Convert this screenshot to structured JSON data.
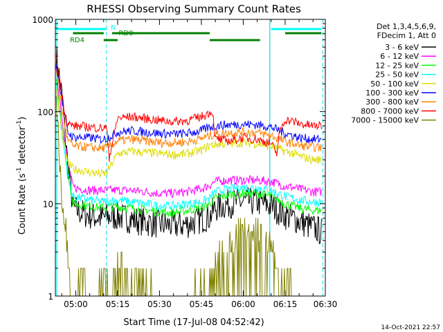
{
  "chart_data": {
    "type": "line",
    "title": "RHESSI Observing Summary Count Rates",
    "xlabel": "Start Time (17-Jul-08 04:52:42)",
    "ylabel_main": "Count Rate (s",
    "ylabel_sup1": "-1",
    "ylabel_mid": " detector",
    "ylabel_sup2": "-1",
    "ylabel_end": ")",
    "y_scale": "log",
    "ylim": [
      1,
      1000
    ],
    "xlim_minutes": [
      292.7,
      389.4
    ],
    "x_ticks": [
      {
        "label": "05:00",
        "minutes": 300
      },
      {
        "label": "05:15",
        "minutes": 315
      },
      {
        "label": "05:30",
        "minutes": 330
      },
      {
        "label": "05:45",
        "minutes": 345
      },
      {
        "label": "06:00",
        "minutes": 360
      },
      {
        "label": "06:15",
        "minutes": 375
      },
      {
        "label": "06:30",
        "minutes": 390
      }
    ],
    "y_ticks": [
      {
        "label": "1",
        "value": 1
      },
      {
        "label": "10",
        "value": 10
      },
      {
        "label": "100",
        "value": 100
      },
      {
        "label": "1000",
        "value": 1000
      }
    ],
    "legend": {
      "header1": "Det 1,3,4,5,6,9,",
      "header2": "FDecim 1, Att 0",
      "placement": "right"
    },
    "series": [
      {
        "name": "3 - 6 keV",
        "color": "#000000",
        "points": [
          [
            293,
            420
          ],
          [
            295,
            150
          ],
          [
            297,
            30
          ],
          [
            299,
            9
          ],
          [
            302,
            8
          ],
          [
            305,
            7.5
          ],
          [
            309,
            7
          ],
          [
            311,
            7.2
          ],
          [
            315,
            7.3
          ],
          [
            320,
            6.8
          ],
          [
            325,
            6.3
          ],
          [
            330,
            6
          ],
          [
            335,
            5.8
          ],
          [
            340,
            6
          ],
          [
            345,
            6.8
          ],
          [
            348,
            7.3
          ],
          [
            350,
            9
          ],
          [
            355,
            10
          ],
          [
            360,
            10.5
          ],
          [
            365,
            10.5
          ],
          [
            370,
            9.5
          ],
          [
            375,
            7.5
          ],
          [
            378,
            7
          ],
          [
            380,
            6.5
          ],
          [
            385,
            5.5
          ],
          [
            388,
            5
          ]
        ]
      },
      {
        "name": "6 - 12 keV",
        "color": "#ff00ff",
        "points": [
          [
            293,
            280
          ],
          [
            295,
            90
          ],
          [
            297,
            30
          ],
          [
            299,
            15
          ],
          [
            305,
            14
          ],
          [
            310,
            14
          ],
          [
            314,
            14
          ],
          [
            320,
            14
          ],
          [
            325,
            13.5
          ],
          [
            330,
            13
          ],
          [
            335,
            13
          ],
          [
            340,
            13.5
          ],
          [
            345,
            14.5
          ],
          [
            348,
            16
          ],
          [
            350,
            17.5
          ],
          [
            355,
            18
          ],
          [
            360,
            18
          ],
          [
            365,
            18
          ],
          [
            370,
            17.5
          ],
          [
            375,
            15.5
          ],
          [
            378,
            15
          ],
          [
            380,
            14.5
          ],
          [
            385,
            13.5
          ],
          [
            388,
            13.5
          ]
        ]
      },
      {
        "name": "12 - 25 keV",
        "color": "#00ff00",
        "points": [
          [
            293,
            230
          ],
          [
            295,
            70
          ],
          [
            297,
            25
          ],
          [
            299,
            10
          ],
          [
            305,
            9.5
          ],
          [
            309,
            9
          ],
          [
            311,
            9.2
          ],
          [
            315,
            9.3
          ],
          [
            320,
            9
          ],
          [
            325,
            8.5
          ],
          [
            330,
            8.2
          ],
          [
            335,
            8
          ],
          [
            340,
            8.5
          ],
          [
            345,
            9
          ],
          [
            348,
            10
          ],
          [
            350,
            11.5
          ],
          [
            355,
            12.5
          ],
          [
            360,
            13
          ],
          [
            365,
            13
          ],
          [
            370,
            12
          ],
          [
            375,
            10
          ],
          [
            378,
            9.5
          ],
          [
            380,
            9
          ],
          [
            385,
            8.5
          ],
          [
            388,
            8.5
          ]
        ]
      },
      {
        "name": "25 - 50 keV",
        "color": "#00ffff",
        "points": [
          [
            293,
            200
          ],
          [
            295,
            60
          ],
          [
            297,
            22
          ],
          [
            299,
            12
          ],
          [
            305,
            11
          ],
          [
            309,
            10.5
          ],
          [
            311,
            10.7
          ],
          [
            315,
            11
          ],
          [
            320,
            10.5
          ],
          [
            325,
            10
          ],
          [
            330,
            9.5
          ],
          [
            335,
            9.5
          ],
          [
            340,
            10
          ],
          [
            345,
            10.5
          ],
          [
            348,
            11.5
          ],
          [
            350,
            13.5
          ],
          [
            355,
            14.5
          ],
          [
            360,
            15
          ],
          [
            365,
            15
          ],
          [
            370,
            14
          ],
          [
            375,
            12
          ],
          [
            378,
            11.5
          ],
          [
            380,
            11
          ],
          [
            385,
            10.5
          ],
          [
            388,
            10.5
          ]
        ]
      },
      {
        "name": "50 - 100 keV",
        "color": "#dddd00",
        "points": [
          [
            293,
            180
          ],
          [
            295,
            60
          ],
          [
            297,
            28
          ],
          [
            299,
            24
          ],
          [
            305,
            22
          ],
          [
            309,
            21
          ],
          [
            311,
            21.5
          ],
          [
            315,
            35
          ],
          [
            320,
            37
          ],
          [
            325,
            36
          ],
          [
            330,
            35
          ],
          [
            335,
            34
          ],
          [
            340,
            35
          ],
          [
            345,
            38
          ],
          [
            348,
            43
          ],
          [
            350,
            44
          ],
          [
            355,
            45
          ],
          [
            360,
            46
          ],
          [
            365,
            45
          ],
          [
            370,
            42
          ],
          [
            375,
            37
          ],
          [
            378,
            35
          ],
          [
            380,
            33
          ],
          [
            385,
            30
          ],
          [
            388,
            30
          ]
        ]
      },
      {
        "name": "100 - 300 keV",
        "color": "#0000ff",
        "points": [
          [
            293,
            330
          ],
          [
            295,
            140
          ],
          [
            297,
            60
          ],
          [
            299,
            53
          ],
          [
            305,
            52
          ],
          [
            309,
            50
          ],
          [
            311,
            51
          ],
          [
            315,
            60
          ],
          [
            320,
            62
          ],
          [
            325,
            60
          ],
          [
            330,
            58
          ],
          [
            335,
            57
          ],
          [
            340,
            58
          ],
          [
            345,
            62
          ],
          [
            348,
            68
          ],
          [
            350,
            70
          ],
          [
            355,
            72
          ],
          [
            360,
            73
          ],
          [
            365,
            72
          ],
          [
            370,
            68
          ],
          [
            375,
            58
          ],
          [
            378,
            55
          ],
          [
            380,
            52
          ],
          [
            385,
            50
          ],
          [
            388,
            50
          ]
        ]
      },
      {
        "name": "300 - 800 keV",
        "color": "#ff7f00",
        "points": [
          [
            293,
            300
          ],
          [
            295,
            110
          ],
          [
            297,
            50
          ],
          [
            299,
            42
          ],
          [
            305,
            41
          ],
          [
            309,
            40
          ],
          [
            311,
            40.5
          ],
          [
            315,
            48
          ],
          [
            320,
            50
          ],
          [
            325,
            48
          ],
          [
            330,
            46
          ],
          [
            335,
            46
          ],
          [
            340,
            47
          ],
          [
            345,
            51
          ],
          [
            348,
            55
          ],
          [
            350,
            57
          ],
          [
            355,
            59
          ],
          [
            360,
            60
          ],
          [
            365,
            59
          ],
          [
            370,
            55
          ],
          [
            375,
            47
          ],
          [
            378,
            45
          ],
          [
            380,
            43
          ],
          [
            385,
            41
          ],
          [
            388,
            41
          ]
        ]
      },
      {
        "name": "800 - 7000 keV",
        "color": "#ff0000",
        "points": [
          [
            293,
            420
          ],
          [
            295,
            150
          ],
          [
            297,
            75
          ],
          [
            299,
            70
          ],
          [
            305,
            68
          ],
          [
            309,
            66
          ],
          [
            311,
            67
          ],
          [
            312,
            32
          ],
          [
            315,
            85
          ],
          [
            320,
            88
          ],
          [
            325,
            84
          ],
          [
            330,
            80
          ],
          [
            335,
            78
          ],
          [
            340,
            80
          ],
          [
            345,
            88
          ],
          [
            348,
            98
          ],
          [
            349,
            100
          ],
          [
            350,
            50
          ],
          [
            355,
            48
          ],
          [
            360,
            52
          ],
          [
            365,
            50
          ],
          [
            370,
            45
          ],
          [
            372,
            35
          ],
          [
            373,
            60
          ],
          [
            375,
            82
          ],
          [
            378,
            78
          ],
          [
            380,
            74
          ],
          [
            385,
            70
          ],
          [
            388,
            70
          ]
        ]
      },
      {
        "name": "7000 - 15000 keV",
        "color": "#808000",
        "points": [
          [
            293,
            150
          ],
          [
            295,
            12
          ],
          [
            297,
            4
          ],
          [
            298,
            1.5
          ],
          [
            299,
            1
          ],
          [
            302,
            2
          ],
          [
            305,
            1
          ],
          [
            308,
            1.5
          ],
          [
            311,
            1.5
          ],
          [
            312,
            1
          ],
          [
            315,
            2
          ],
          [
            317,
            3
          ],
          [
            319,
            2
          ],
          [
            322,
            1.5
          ],
          [
            325,
            1.2
          ],
          [
            328,
            1
          ],
          [
            332,
            1
          ],
          [
            336,
            1
          ],
          [
            340,
            1
          ],
          [
            345,
            1.2
          ],
          [
            348,
            1.5
          ],
          [
            350,
            2
          ],
          [
            353,
            3
          ],
          [
            356,
            4
          ],
          [
            359,
            5
          ],
          [
            362,
            5
          ],
          [
            365,
            5
          ],
          [
            368,
            4
          ],
          [
            370,
            3
          ],
          [
            372,
            2.5
          ],
          [
            374,
            2
          ],
          [
            376,
            1.5
          ],
          [
            378,
            1.2
          ],
          [
            380,
            1
          ],
          [
            384,
            1
          ],
          [
            388,
            1
          ]
        ]
      }
    ],
    "annotations": [
      {
        "label": "RD0",
        "color": "#008000",
        "segments": [
          [
            299,
            310
          ],
          [
            313,
            348
          ],
          [
            375,
            388
          ]
        ]
      },
      {
        "label": "RD4",
        "color": "#008000",
        "segments": [
          [
            310,
            315
          ],
          [
            348,
            366
          ]
        ]
      },
      {
        "label": "N",
        "color": "#00ffff",
        "segments": [
          [
            293,
            311
          ],
          [
            370,
            388
          ]
        ]
      }
    ],
    "saa_lines_minutes": [
      311,
      388.5
    ],
    "night_lines_minutes": [
      369.5
    ],
    "left_edge_line_minutes": [
      293.2
    ]
  },
  "footer": {
    "timestamp": "14-Oct-2021 22:57"
  }
}
